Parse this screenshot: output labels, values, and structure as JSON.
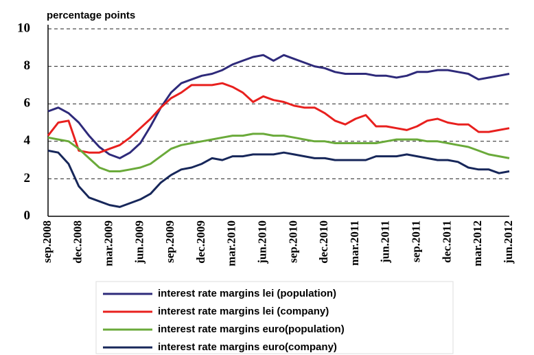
{
  "chart_data": {
    "type": "line",
    "y_label": "percentage points",
    "categories": [
      "sep.2008",
      null,
      null,
      "dec.2008",
      null,
      null,
      "mar.2009",
      null,
      null,
      "jun.2009",
      null,
      null,
      "sep.2009",
      null,
      null,
      "dec.2009",
      null,
      null,
      "mar.2010",
      null,
      null,
      "jun.2010",
      null,
      null,
      "sep.2010",
      null,
      null,
      "dec.2010",
      null,
      null,
      "mar.2011",
      null,
      null,
      "jun.2011",
      null,
      null,
      "sep.2011",
      null,
      null,
      "dec.2011",
      null,
      null,
      "mar.2012",
      null,
      null,
      "jun.2012"
    ],
    "series": [
      {
        "name": "interest rate margins lei (population)",
        "color": "#2e2a7a",
        "values": [
          5.6,
          5.8,
          5.5,
          5.0,
          4.3,
          3.7,
          3.3,
          3.1,
          3.4,
          3.9,
          4.8,
          5.8,
          6.6,
          7.1,
          7.3,
          7.5,
          7.6,
          7.8,
          8.1,
          8.3,
          8.5,
          8.6,
          8.3,
          8.6,
          8.4,
          8.2,
          8.0,
          7.9,
          7.7,
          7.6,
          7.6,
          7.6,
          7.5,
          7.5,
          7.4,
          7.5,
          7.7,
          7.7,
          7.8,
          7.8,
          7.7,
          7.6,
          7.3,
          7.4,
          7.5,
          7.6
        ]
      },
      {
        "name": "interest rate margins lei (company)",
        "color": "#e8201e",
        "values": [
          4.3,
          5.0,
          5.1,
          3.5,
          3.4,
          3.4,
          3.6,
          3.8,
          4.2,
          4.7,
          5.2,
          5.8,
          6.3,
          6.6,
          7.0,
          7.0,
          7.0,
          7.1,
          6.9,
          6.6,
          6.1,
          6.4,
          6.2,
          6.1,
          5.9,
          5.8,
          5.8,
          5.5,
          5.1,
          4.9,
          5.2,
          5.4,
          4.8,
          4.8,
          4.7,
          4.6,
          4.8,
          5.1,
          5.2,
          5.0,
          4.9,
          4.9,
          4.5,
          4.5,
          4.6,
          4.7
        ]
      },
      {
        "name": "interest rate margins euro(population)",
        "color": "#6aaa3a",
        "values": [
          4.2,
          4.1,
          4.0,
          3.6,
          3.1,
          2.6,
          2.4,
          2.4,
          2.5,
          2.6,
          2.8,
          3.2,
          3.6,
          3.8,
          3.9,
          4.0,
          4.1,
          4.2,
          4.3,
          4.3,
          4.4,
          4.4,
          4.3,
          4.3,
          4.2,
          4.1,
          4.0,
          4.0,
          3.9,
          3.9,
          3.9,
          3.9,
          3.9,
          4.0,
          4.1,
          4.1,
          4.1,
          4.0,
          4.0,
          3.9,
          3.8,
          3.7,
          3.5,
          3.3,
          3.2,
          3.1
        ]
      },
      {
        "name": "interest rate margins euro(company)",
        "color": "#17275a",
        "values": [
          3.5,
          3.4,
          2.8,
          1.6,
          1.0,
          0.8,
          0.6,
          0.5,
          0.7,
          0.9,
          1.2,
          1.8,
          2.2,
          2.5,
          2.6,
          2.8,
          3.1,
          3.0,
          3.2,
          3.2,
          3.3,
          3.3,
          3.3,
          3.4,
          3.3,
          3.2,
          3.1,
          3.1,
          3.0,
          3.0,
          3.0,
          3.0,
          3.2,
          3.2,
          3.2,
          3.3,
          3.2,
          3.1,
          3.0,
          3.0,
          2.9,
          2.6,
          2.5,
          2.5,
          2.3,
          2.4
        ]
      }
    ],
    "ylim": [
      0,
      10
    ],
    "yticks": [
      0,
      2,
      4,
      6,
      8,
      10
    ],
    "grid": true
  }
}
